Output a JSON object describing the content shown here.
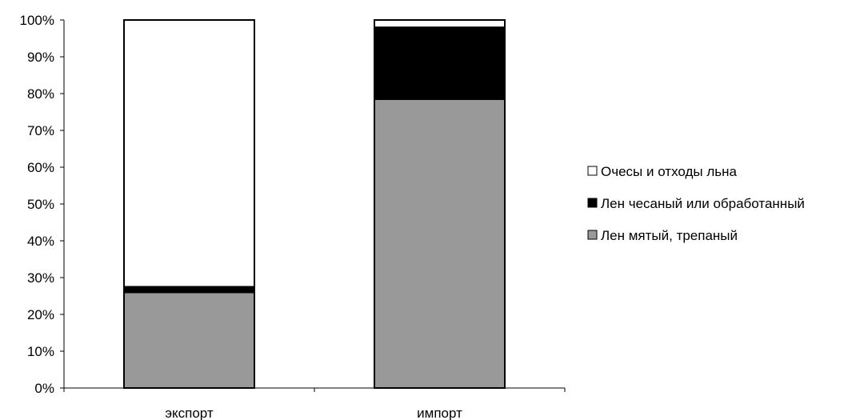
{
  "chart_data": {
    "type": "bar",
    "stacked": true,
    "percent_stacked": true,
    "categories": [
      "экспорт",
      "импорт"
    ],
    "series": [
      {
        "name": "Лен мятый, трепаный",
        "values": [
          26,
          78.5
        ],
        "color": "#999999"
      },
      {
        "name": "Лен чесаный или обработанный",
        "values": [
          1.5,
          19.5
        ],
        "color": "#000000"
      },
      {
        "name": "Очесы и отходы льна",
        "values": [
          72.5,
          2
        ],
        "color": "#ffffff"
      }
    ],
    "legend_order": [
      2,
      1,
      0
    ],
    "y_ticks": [
      "0%",
      "10%",
      "20%",
      "30%",
      "40%",
      "50%",
      "60%",
      "70%",
      "80%",
      "90%",
      "100%"
    ],
    "ylim": [
      0,
      100
    ],
    "grid": false,
    "legend_position": "right",
    "title": "",
    "xlabel": "",
    "ylabel": ""
  }
}
